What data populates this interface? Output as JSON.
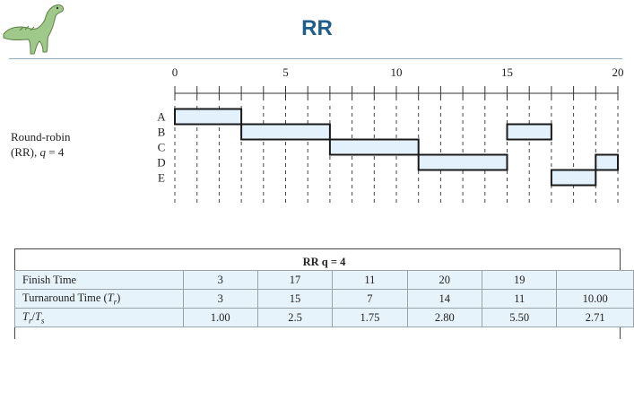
{
  "slide": {
    "title": "RR"
  },
  "diagram": {
    "label_line1": "Round-robin",
    "label_line2_prefix": "(RR), ",
    "label_q": "q",
    "label_line2_suffix": " = 4",
    "axis_ticks": [
      "0",
      "5",
      "10",
      "15",
      "20"
    ],
    "axis_max": 20,
    "processes": [
      "A",
      "B",
      "C",
      "D",
      "E"
    ],
    "bars": [
      {
        "process": "A",
        "start": 0,
        "end": 3
      },
      {
        "process": "B",
        "start": 3,
        "end": 7
      },
      {
        "process": "C",
        "start": 7,
        "end": 11
      },
      {
        "process": "D",
        "start": 11,
        "end": 15
      },
      {
        "process": "B",
        "start": 15,
        "end": 17
      },
      {
        "process": "E",
        "start": 17,
        "end": 19
      },
      {
        "process": "D",
        "start": 19,
        "end": 20
      }
    ],
    "bar_fill": "#e2f1fb",
    "bar_stroke": "#1a1a1a"
  },
  "table": {
    "header": "RR q = 4",
    "rows": [
      {
        "label": "Finish Time",
        "values": [
          "3",
          "17",
          "11",
          "20",
          "19",
          ""
        ]
      },
      {
        "label": "Turnaround Time (Tr)",
        "values": [
          "3",
          "15",
          "7",
          "14",
          "11",
          "10.00"
        ]
      },
      {
        "label": "Tr/Ts",
        "values": [
          "1.00",
          "2.5",
          "1.75",
          "2.80",
          "5.50",
          "2.71"
        ]
      }
    ],
    "row_fill": "#e6f3fb"
  }
}
